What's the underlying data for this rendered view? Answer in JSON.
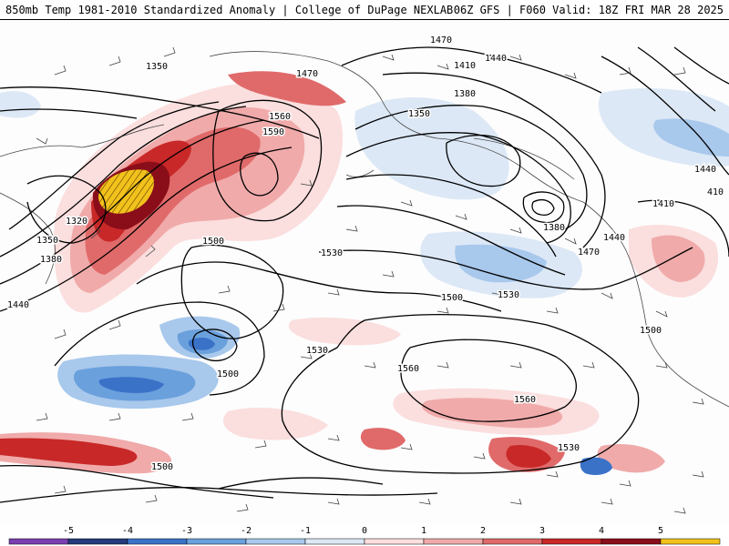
{
  "header": {
    "title": "850mb Temp 1981-2010 Standardized Anomaly | College of DuPage NEXLAB",
    "run_info": "06Z GFS | F060 Valid: 18Z FRI MAR 28 2025"
  },
  "contour_labels": [
    {
      "id": "c1350a",
      "text": "1350"
    },
    {
      "id": "c1470a",
      "text": "1470"
    },
    {
      "id": "c1560a",
      "text": "1560"
    },
    {
      "id": "c1590a",
      "text": "1590"
    },
    {
      "id": "c1320a",
      "text": "1320"
    },
    {
      "id": "c1350b",
      "text": "1350"
    },
    {
      "id": "c1380a",
      "text": "1380"
    },
    {
      "id": "c1440a",
      "text": "1440"
    },
    {
      "id": "c1500a",
      "text": "1500"
    },
    {
      "id": "c1530a",
      "text": "1530"
    },
    {
      "id": "c1500b",
      "text": "1500"
    },
    {
      "id": "c1470b",
      "text": "1470"
    },
    {
      "id": "c1440b",
      "text": "1440"
    },
    {
      "id": "c1410a",
      "text": "1410"
    },
    {
      "id": "c1380b",
      "text": "1380"
    },
    {
      "id": "c1350c",
      "text": "1350"
    },
    {
      "id": "c1380c",
      "text": "1380"
    },
    {
      "id": "c1470c",
      "text": "1470"
    },
    {
      "id": "c1440c",
      "text": "1440"
    },
    {
      "id": "c1500c",
      "text": "1500"
    },
    {
      "id": "c1530b",
      "text": "1530"
    },
    {
      "id": "c1410b",
      "text": "1410"
    },
    {
      "id": "c1440d",
      "text": "1440"
    },
    {
      "id": "c410",
      "text": "410"
    },
    {
      "id": "c1500d",
      "text": "1500"
    },
    {
      "id": "c1530c",
      "text": "1530"
    },
    {
      "id": "c1560b",
      "text": "1560"
    },
    {
      "id": "c1560c",
      "text": "1560"
    },
    {
      "id": "c1530d",
      "text": "1530"
    },
    {
      "id": "c1500e",
      "text": "1500"
    }
  ],
  "legend": {
    "ticks": [
      "-5",
      "-4",
      "-3",
      "-2",
      "-1",
      "0",
      "1",
      "2",
      "3",
      "4",
      "5"
    ],
    "colors": [
      "#7a3fb0",
      "#243a7a",
      "#3a72c8",
      "#6aa0dc",
      "#a8c8ec",
      "#dce8f6",
      "#fbdede",
      "#f0aaaa",
      "#e06a6a",
      "#c82828",
      "#8a0e1a",
      "#f2c21c"
    ]
  }
}
